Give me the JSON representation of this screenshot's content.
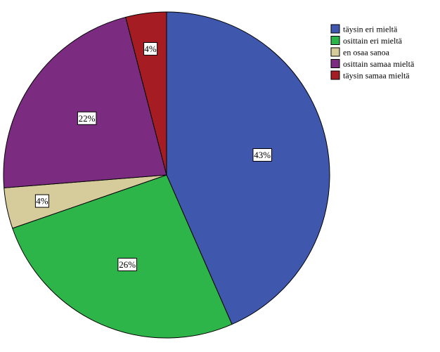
{
  "chart_data": {
    "type": "pie",
    "categories": [
      "täysin eri mieltä",
      "osittain eri mieltä",
      "en osaa sanoa",
      "osittain samaa mieltä",
      "täysin samaa mieltä"
    ],
    "values": [
      43,
      26,
      4,
      22,
      4
    ],
    "data_labels": [
      "43%",
      "26%",
      "4%",
      "22%",
      "4%"
    ],
    "colors": [
      "#3f58ad",
      "#2db54a",
      "#d6cc9b",
      "#7b2b80",
      "#a51d22"
    ],
    "title": "",
    "start_angle": "12 o'clock",
    "direction": "clockwise",
    "legend": {
      "placement": "top-right",
      "entries": [
        "täysin eri mieltä",
        "osittain eri mieltä",
        "en osaa sanoa",
        "osittain samaa mieltä",
        "täysin samaa mieltä"
      ]
    }
  }
}
